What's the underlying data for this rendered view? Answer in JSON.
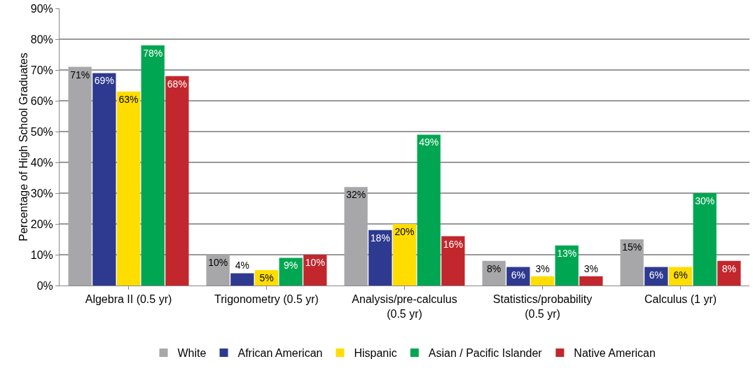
{
  "chart_data": {
    "type": "bar",
    "ylabel": "Percentage of High School Graduates",
    "categories": [
      "Algebra II (0.5 yr)",
      "Trigonometry (0.5 yr)",
      "Analysis/pre-calculus\n(0.5 yr)",
      "Statistics/probability\n(0.5 yr)",
      "Calculus (1 yr)"
    ],
    "series": [
      {
        "name": "White",
        "color": "#a7a7a9",
        "values": [
          71,
          10,
          32,
          8,
          15
        ],
        "value_labels": [
          "71%",
          "10%",
          "32%",
          "8%",
          "15%"
        ]
      },
      {
        "name": "African American",
        "color": "#2e3a8f",
        "values": [
          69,
          4,
          18,
          6,
          6
        ],
        "value_labels": [
          "69%",
          "4%",
          "18%",
          "6%",
          "6%"
        ]
      },
      {
        "name": "Hispanic",
        "color": "#ffdd00",
        "values": [
          63,
          5,
          20,
          3,
          6
        ],
        "value_labels": [
          "63%",
          "5%",
          "20%",
          "3%",
          "6%"
        ]
      },
      {
        "name": "Asian / Pacific Islander",
        "color": "#00a651",
        "values": [
          78,
          9,
          49,
          13,
          30
        ],
        "value_labels": [
          "78%",
          "9%",
          "49%",
          "13%",
          "30%"
        ]
      },
      {
        "name": "Native American",
        "color": "#c1272d",
        "values": [
          68,
          10,
          16,
          3,
          8
        ],
        "value_labels": [
          "68%",
          "10%",
          "16%",
          "3%",
          "8%"
        ]
      }
    ],
    "ylim": [
      0,
      90
    ],
    "yticks": [
      {
        "value": 0,
        "label": "0%"
      },
      {
        "value": 10,
        "label": "10%"
      },
      {
        "value": 20,
        "label": "20%"
      },
      {
        "value": 30,
        "label": "30%"
      },
      {
        "value": 40,
        "label": "40%"
      },
      {
        "value": 50,
        "label": "50%"
      },
      {
        "value": 60,
        "label": "60%"
      },
      {
        "value": 70,
        "label": "70%"
      },
      {
        "value": 80,
        "label": "80%"
      },
      {
        "value": 90,
        "label": "90%"
      }
    ],
    "grid": "y",
    "legend": "bottom"
  }
}
